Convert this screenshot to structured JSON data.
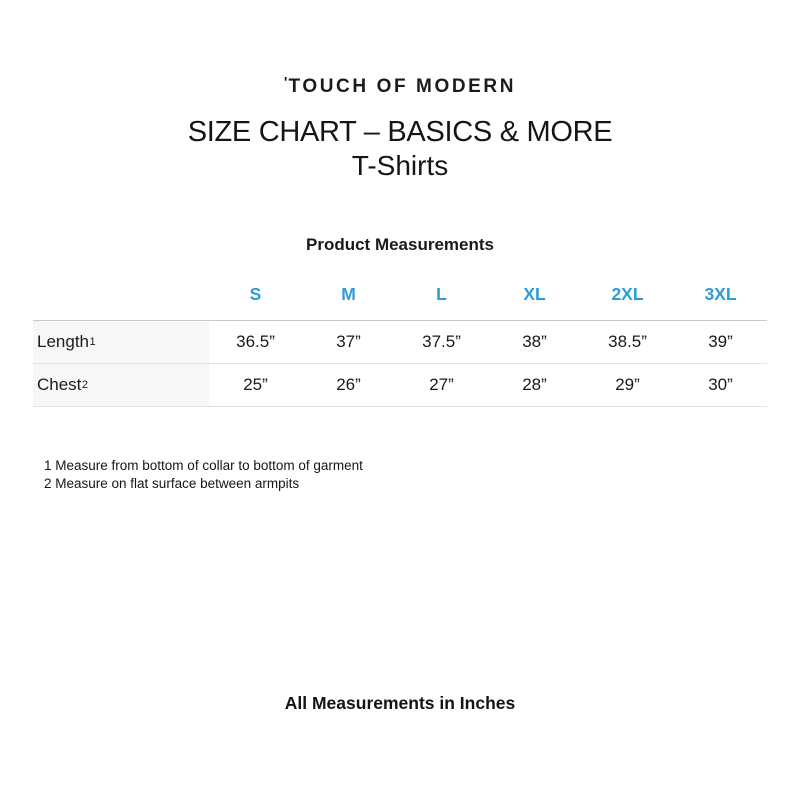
{
  "logo": {
    "mark": "'",
    "text": "TOUCH OF MODERN"
  },
  "title": "SIZE CHART – BASICS & MORE",
  "subtitle": "T-Shirts",
  "section_heading": "Product Measurements",
  "table": {
    "columns": [
      "S",
      "M",
      "L",
      "XL",
      "2XL",
      "3XL"
    ],
    "rows": [
      {
        "label": "Length",
        "footnote_ref": "1",
        "values": [
          "36.5”",
          "37”",
          "37.5”",
          "38”",
          "38.5”",
          "39”"
        ]
      },
      {
        "label": "Chest",
        "footnote_ref": "2",
        "values": [
          "25”",
          "26”",
          "27”",
          "28”",
          "29”",
          "30”"
        ]
      }
    ]
  },
  "footnotes": [
    "1 Measure from bottom of collar to bottom of garment",
    "2 Measure on flat surface between armpits"
  ],
  "bottom_note": "All Measurements in Inches",
  "colors": {
    "accent_blue": "#2D9BD8",
    "row_label_bg": "#F7F7F7",
    "border_top": "#C9C9C9",
    "border_row": "#E3E3E3"
  }
}
